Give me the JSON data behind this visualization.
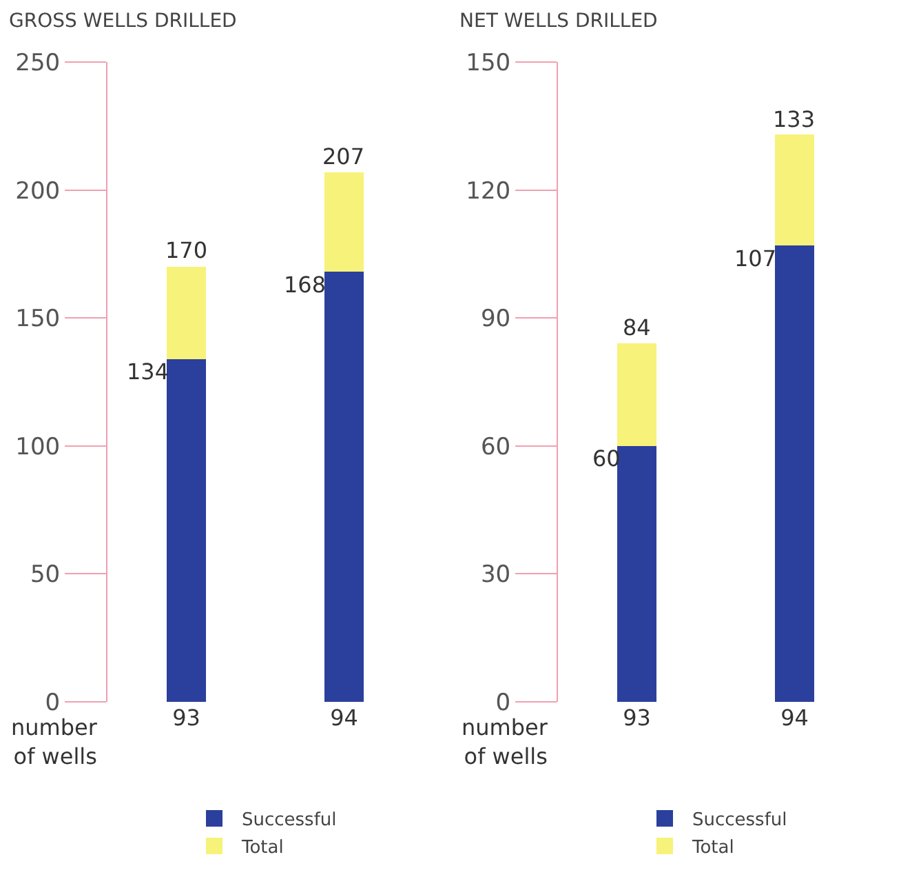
{
  "chart_data": [
    {
      "type": "bar",
      "title": "GROSS WELLS DRILLED",
      "xlabel": "number of wells",
      "categories": [
        "93",
        "94"
      ],
      "stacked": true,
      "ylim": [
        0,
        250
      ],
      "yticks": [
        0,
        50,
        100,
        150,
        200,
        250
      ],
      "grid": false,
      "legend": "bottom",
      "totals": [
        "170",
        "207"
      ],
      "series": [
        {
          "name": "Successful",
          "color": "#2b3f9c",
          "values": [
            134,
            168
          ],
          "value_labels": [
            "134",
            "168"
          ]
        },
        {
          "name": "Total",
          "color": "#f7f27a",
          "values": [
            36,
            39
          ]
        }
      ]
    },
    {
      "type": "bar",
      "title": "NET WELLS DRILLED",
      "xlabel": "number of wells",
      "categories": [
        "93",
        "94"
      ],
      "stacked": true,
      "ylim": [
        0,
        150
      ],
      "yticks": [
        0,
        30,
        60,
        90,
        120,
        150
      ],
      "grid": false,
      "legend": "bottom",
      "totals": [
        "84",
        "133"
      ],
      "series": [
        {
          "name": "Successful",
          "color": "#2b3f9c",
          "values": [
            60,
            107
          ],
          "value_labels": [
            "60",
            "107"
          ]
        },
        {
          "name": "Total",
          "color": "#f7f27a",
          "values": [
            24,
            26
          ]
        }
      ]
    }
  ]
}
